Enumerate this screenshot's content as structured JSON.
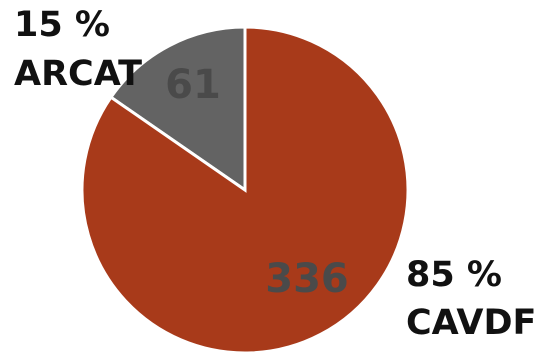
{
  "chart_data": {
    "type": "pie",
    "title": "",
    "slices": [
      {
        "name": "ARCAT",
        "value": 61,
        "percent_label": "15 %",
        "value_label": "61",
        "color": "#636363"
      },
      {
        "name": "CAVDF",
        "value": 336,
        "percent_label": "85 %",
        "value_label": "336",
        "color": "#A83A1A"
      }
    ],
    "start_angle_deg": 0,
    "direction": "counterclockwise-from-top",
    "value_label_color": "#4A4A4A",
    "slice_border_color": "#FFFFFF",
    "legend": "none"
  }
}
